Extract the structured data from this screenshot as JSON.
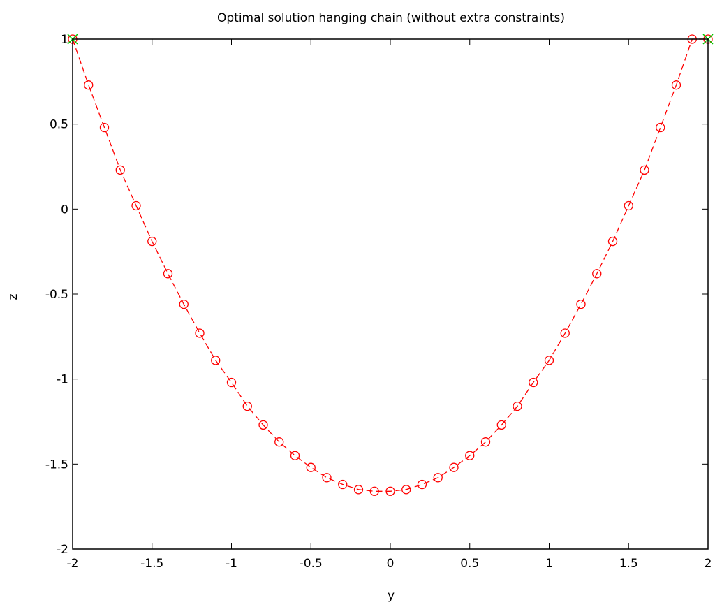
{
  "chart_data": {
    "type": "line",
    "title": "Optimal solution hanging chain (without extra constraints)",
    "xlabel": "y",
    "ylabel": "z",
    "xlim": [
      -2,
      2
    ],
    "ylim": [
      -2,
      1
    ],
    "xticks": [
      "-2",
      "-1.5",
      "-1",
      "-0.5",
      "0",
      "0.5",
      "1",
      "1.5",
      "2"
    ],
    "yticks": [
      "-2",
      "-1.5",
      "-1",
      "-0.5",
      "0",
      "0.5",
      "1"
    ],
    "xtick_values": [
      -2,
      -1.5,
      -1,
      -0.5,
      0,
      0.5,
      1,
      1.5,
      2
    ],
    "ytick_values": [
      -2,
      -1.5,
      -1,
      -0.5,
      0,
      0.5,
      1
    ],
    "grid": false,
    "legend": "none",
    "series": [
      {
        "style": "red dashed line with circle markers",
        "color": "#ff0000",
        "x": [
          -2.0,
          -1.9,
          -1.8,
          -1.7,
          -1.6,
          -1.5,
          -1.4,
          -1.3,
          -1.2,
          -1.1,
          -1.0,
          -0.9,
          -0.8,
          -0.7,
          -0.6,
          -0.5,
          -0.4,
          -0.3,
          -0.2,
          -0.1,
          0.0,
          0.1,
          0.2,
          0.3,
          0.4,
          0.5,
          0.6,
          0.7,
          0.8,
          0.9,
          1.0,
          1.1,
          1.2,
          1.3,
          1.4,
          1.5,
          1.6,
          1.7,
          1.8,
          1.9,
          2.0
        ],
        "y": [
          1.0,
          0.73,
          0.48,
          0.23,
          0.02,
          -0.19,
          -0.38,
          -0.56,
          -0.73,
          -0.89,
          -1.02,
          -1.16,
          -1.27,
          -1.37,
          -1.45,
          -1.52,
          -1.58,
          -1.62,
          -1.65,
          -1.66,
          -1.66,
          -1.65,
          -1.62,
          -1.58,
          -1.52,
          -1.45,
          -1.37,
          -1.27,
          -1.16,
          -1.02,
          -0.89,
          -0.73,
          -0.56,
          -0.38,
          -0.19,
          0.02,
          0.23,
          0.48,
          0.73,
          1.0,
          1.0
        ]
      },
      {
        "style": "green x markers at suspension points",
        "color": "#00cc00",
        "x": [
          -2,
          2
        ],
        "y": [
          1,
          1
        ]
      }
    ]
  }
}
